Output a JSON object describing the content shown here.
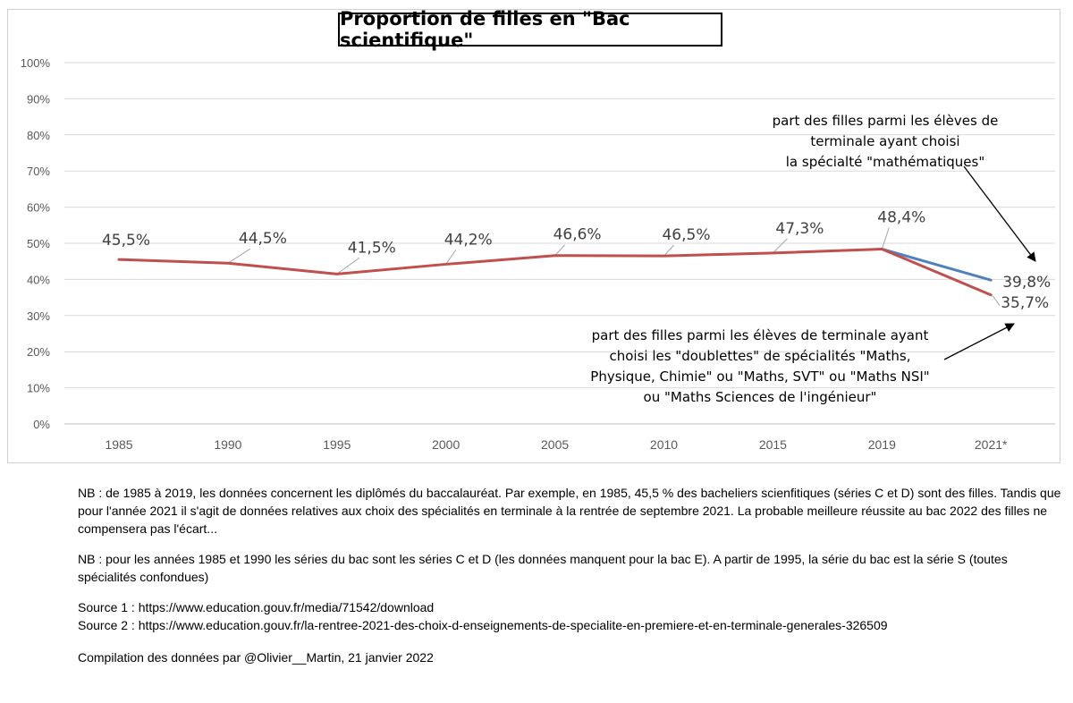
{
  "chart_data": {
    "type": "line",
    "title": "Proportion de filles en \"Bac scientifique\"",
    "categories": [
      "1985",
      "1990",
      "1995",
      "2000",
      "2005",
      "2010",
      "2015",
      "2019",
      "2021*"
    ],
    "ylim": [
      0,
      100
    ],
    "yticks": [
      "0%",
      "10%",
      "20%",
      "30%",
      "40%",
      "50%",
      "60%",
      "70%",
      "80%",
      "90%",
      "100%"
    ],
    "grid": true,
    "series": [
      {
        "values": [
          45.5,
          44.5,
          41.5,
          44.2,
          46.6,
          46.5,
          47.3,
          48.4,
          35.7
        ],
        "labels": [
          "45,5%",
          "44,5%",
          "41,5%",
          "44,2%",
          "46,6%",
          "46,5%",
          "47,3%",
          "48,4%",
          "35,7%"
        ],
        "color": "#c0504d"
      },
      {
        "values": [
          null,
          null,
          null,
          null,
          null,
          null,
          null,
          48.4,
          39.8
        ],
        "labels": [
          "",
          "",
          "",
          "",
          "",
          "",
          "",
          "",
          "39,8%"
        ],
        "color": "#4f81bd"
      }
    ],
    "annotations": [
      {
        "id": "maths",
        "lines": [
          "part des filles parmi les élèves de",
          "terminale ayant choisi",
          "la spécialté \"mathématiques\""
        ]
      },
      {
        "id": "doublettes",
        "lines": [
          "part des filles parmi les élèves de terminale ayant",
          "choisi les \"doublettes\" de spécialités \"Maths,",
          "Physique, Chimie\" ou \"Maths, SVT\" ou \"Maths NSI\"",
          "ou \"Maths Sciences de l'ingénieur\""
        ]
      }
    ]
  },
  "notes": {
    "nb1": "NB : de 1985 à 2019, les données concernent les diplômés du baccalauréat. Par exemple, en 1985, 45,5 % des bacheliers scienfitiques (séries C et D) sont des filles. Tandis que pour l'année 2021 il s'agit de données relatives aux choix des spécialités en terminale à la rentrée de septembre 2021. La probable meilleure réussite au bac 2022 des filles ne compensera pas l'écart...",
    "nb2": "NB : pour les années 1985 et 1990 les séries du bac sont les séries C et D (les données manquent pour la bac E). A partir de 1995, la série du bac est la série S (toutes spécialités confondues)",
    "source1": "Source 1 : https://www.education.gouv.fr/media/71542/download",
    "source2": "Source 2 : https://www.education.gouv.fr/la-rentree-2021-des-choix-d-enseignements-de-specialite-en-premiere-et-en-terminale-generales-326509",
    "compilation": "Compilation des données par @Olivier__Martin, 21 janvier 2022"
  }
}
